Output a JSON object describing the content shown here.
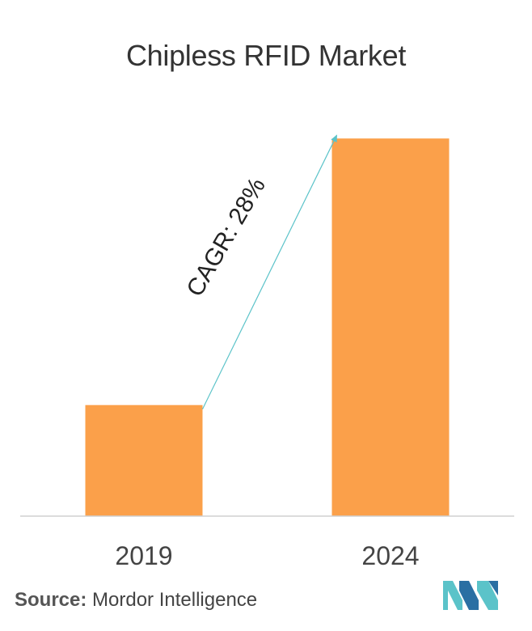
{
  "chart_data": {
    "type": "bar",
    "title": "Chipless RFID Market",
    "categories": [
      "2019",
      "2024"
    ],
    "values": [
      1.0,
      3.4
    ],
    "ylim": [
      0,
      3.7
    ],
    "grid": false,
    "annotation": "CAGR: 28%",
    "colors": {
      "bar": "#FBA04A",
      "arrow": "#5BC3C9",
      "axis": "#D0D0D0"
    }
  },
  "source": {
    "label": "Source:",
    "text": "Mordor Intelligence"
  },
  "logo": {
    "icon": "mordor-intelligence-logo",
    "colors": [
      "#5BC3C9",
      "#2A6FA3"
    ]
  }
}
